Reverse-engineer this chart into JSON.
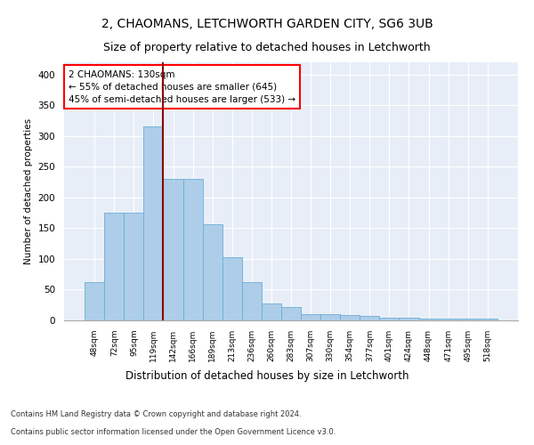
{
  "title1": "2, CHAOMANS, LETCHWORTH GARDEN CITY, SG6 3UB",
  "title2": "Size of property relative to detached houses in Letchworth",
  "xlabel": "Distribution of detached houses by size in Letchworth",
  "ylabel": "Number of detached properties",
  "categories": [
    "48sqm",
    "72sqm",
    "95sqm",
    "119sqm",
    "142sqm",
    "166sqm",
    "189sqm",
    "213sqm",
    "236sqm",
    "260sqm",
    "283sqm",
    "307sqm",
    "330sqm",
    "354sqm",
    "377sqm",
    "401sqm",
    "424sqm",
    "448sqm",
    "471sqm",
    "495sqm",
    "518sqm"
  ],
  "values": [
    62,
    175,
    175,
    315,
    230,
    230,
    157,
    103,
    62,
    28,
    22,
    10,
    10,
    9,
    7,
    5,
    4,
    3,
    3,
    3,
    3
  ],
  "bar_color": "#aecde8",
  "bar_edge_color": "#6aaed6",
  "annotation_title": "2 CHAOMANS: 130sqm",
  "annotation_line1": "← 55% of detached houses are smaller (645)",
  "annotation_line2": "45% of semi-detached houses are larger (533) →",
  "annotation_box_color": "white",
  "annotation_box_edge_color": "red",
  "vline_color": "#8b0000",
  "background_color": "#e8eef8",
  "footer1": "Contains HM Land Registry data © Crown copyright and database right 2024.",
  "footer2": "Contains public sector information licensed under the Open Government Licence v3.0.",
  "ylim": [
    0,
    420
  ],
  "yticks": [
    0,
    50,
    100,
    150,
    200,
    250,
    300,
    350,
    400
  ],
  "title1_fontsize": 10,
  "title2_fontsize": 9,
  "vline_xval": 130
}
